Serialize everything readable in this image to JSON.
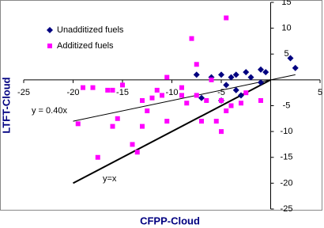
{
  "chart_data": {
    "type": "scatter",
    "xlabel": "CFPP-Cloud",
    "ylabel": "LTFT-Cloud",
    "xlim": [
      -25,
      5
    ],
    "ylim": [
      -25,
      15
    ],
    "xticks": [
      -25,
      -20,
      -15,
      -10,
      -5,
      5
    ],
    "yticks": [
      -25,
      -20,
      -15,
      -10,
      -5,
      5,
      10,
      15
    ],
    "grid": false,
    "legend": "upper left",
    "series": [
      {
        "name": "Unadditized fuels",
        "color": "#000080",
        "marker": "diamond",
        "x": [
          2,
          2.5,
          -1,
          -0.5,
          -2,
          -3.5,
          -4,
          -5,
          -6,
          -4.5,
          -3,
          -3.5,
          -5,
          -7,
          -7.5,
          -2.5,
          -1
        ],
        "y": [
          4.2,
          2.3,
          2,
          1.5,
          0.5,
          1,
          0.5,
          1,
          0.5,
          -1,
          -3,
          -2,
          -4,
          -3.5,
          1,
          1.5,
          -0.5
        ]
      },
      {
        "name": "Additized fuels",
        "color": "#ff00ff",
        "marker": "square",
        "x": [
          -4.5,
          -8,
          -7.5,
          -10.5,
          -6,
          -9,
          -11,
          -12,
          -13,
          -11.5,
          -12.5,
          -10.5,
          -13,
          -15.5,
          -16,
          -19.5,
          -14,
          -13.5,
          -17.5,
          -15,
          -16.5,
          -18,
          -19,
          -16,
          -9,
          -8.5,
          -7,
          -6.5,
          -5,
          -5.5,
          -5,
          -4,
          -3,
          -2.5,
          -7.5,
          -4.5,
          -1
        ],
        "y": [
          12,
          8,
          3,
          0.5,
          0,
          -1.5,
          -3,
          -3.5,
          -4,
          -2,
          -6,
          -8,
          -9,
          -7.5,
          -9,
          -8.5,
          -12.5,
          -14,
          -15,
          -1,
          -2,
          -1.5,
          -1.5,
          -2,
          -3,
          -4.5,
          -8,
          -4,
          -4,
          -8,
          -10,
          -5,
          -4.5,
          -2.5,
          -3,
          -6,
          -4
        ]
      }
    ],
    "trendlines": [
      {
        "label": "y = 0.40x",
        "slope": 0.4,
        "x": [
          -20,
          2.5
        ],
        "width": 1
      },
      {
        "label": "y=x",
        "slope": 1,
        "x": [
          -20,
          0
        ],
        "width": 2
      }
    ]
  }
}
